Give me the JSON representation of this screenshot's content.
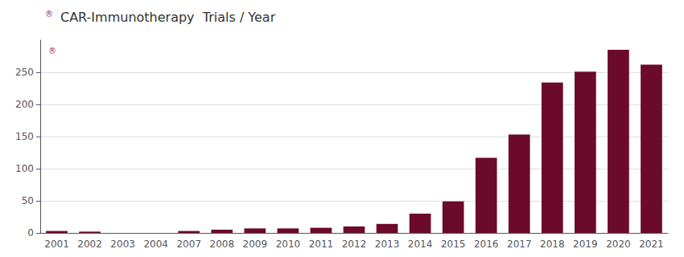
{
  "chart_data": {
    "type": "bar",
    "title": "CAR-Immunotherapy  Trials / Year",
    "categories": [
      "2001",
      "2002",
      "2003",
      "2004",
      "2007",
      "2008",
      "2009",
      "2010",
      "2011",
      "2012",
      "2013",
      "2014",
      "2015",
      "2016",
      "2017",
      "2018",
      "2019",
      "2020",
      "2021"
    ],
    "values": [
      3,
      2,
      0,
      0,
      3,
      5,
      7,
      7,
      8,
      10,
      14,
      30,
      49,
      117,
      153,
      234,
      251,
      285,
      262
    ],
    "color": "#6B0A2A",
    "ylim": [
      0,
      300
    ],
    "yticks": [
      0,
      50,
      100,
      150,
      200,
      250
    ],
    "grid": true,
    "annotations": [
      "®",
      "®"
    ]
  }
}
